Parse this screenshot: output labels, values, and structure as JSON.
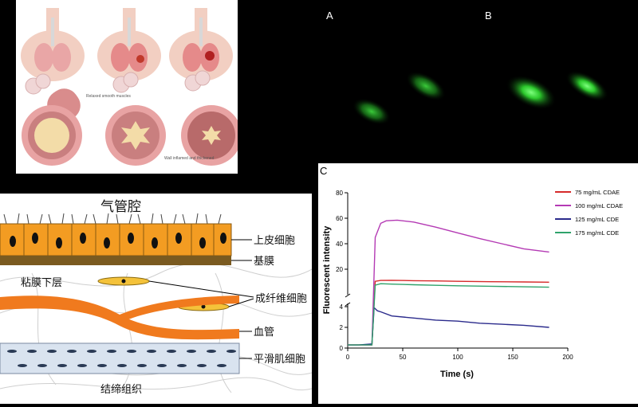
{
  "airway": {
    "label_relaxed": "Relaxed smooth muscles",
    "label_inflamed": "Wall inflamed and thickened"
  },
  "tissue": {
    "lumen": "气管腔",
    "epithelial": "上皮细胞",
    "basement": "基膜",
    "lamina": "粘膜下层",
    "fibroblast": "成纤维细胞",
    "vessel": "血管",
    "smooth_muscle": "平滑肌细胞",
    "connective": "结缔组织"
  },
  "micro": {
    "label_a": "A",
    "label_b": "B"
  },
  "panel_c": {
    "label": "C"
  },
  "colors": {
    "red": "#d62a2a",
    "magenta": "#b43ab4",
    "navy": "#2b2b8c",
    "green": "#2fa36b"
  },
  "chart_data": {
    "type": "line",
    "xlabel": "Time (s)",
    "ylabel": "Fluorescent intensity",
    "xlim": [
      0,
      200
    ],
    "x_ticks": [
      "0",
      "50",
      "100",
      "150",
      "200"
    ],
    "y_upper_ticks": [
      "20",
      "40",
      "60",
      "80"
    ],
    "y_lower_ticks": [
      "0",
      "2",
      "4"
    ],
    "broken_axis": true,
    "legend_position": "top-right",
    "series": [
      {
        "name": "75 mg/mL CDAE",
        "color": "#d62a2a",
        "segment": "upper",
        "x": [
          0,
          22,
          25,
          30,
          40,
          60,
          80,
          100,
          130,
          160,
          183
        ],
        "y": [
          0.3,
          0.3,
          10.5,
          11.2,
          11.3,
          11.0,
          10.8,
          10.5,
          10.2,
          10.0,
          9.8
        ]
      },
      {
        "name": "100 mg/mL CDAE",
        "color": "#b43ab4",
        "segment": "upper",
        "x": [
          0,
          22,
          25,
          30,
          35,
          45,
          60,
          80,
          100,
          120,
          140,
          160,
          183
        ],
        "y": [
          0.3,
          0.3,
          45,
          56,
          58,
          58.5,
          57,
          53,
          48.5,
          44,
          40,
          36,
          33.5
        ]
      },
      {
        "name": "125 mg/mL  CDE",
        "color": "#2b2b8c",
        "segment": "lower",
        "x": [
          0,
          10,
          22,
          24,
          27,
          30,
          40,
          60,
          80,
          100,
          120,
          140,
          160,
          183
        ],
        "y": [
          0.3,
          0.3,
          0.4,
          3.9,
          3.6,
          3.5,
          3.1,
          2.9,
          2.7,
          2.6,
          2.4,
          2.3,
          2.2,
          2.0
        ]
      },
      {
        "name": "175 mg/mL  CDE",
        "color": "#2fa36b",
        "segment": "upper",
        "x": [
          0,
          22,
          25,
          30,
          40,
          60,
          80,
          100,
          130,
          160,
          183
        ],
        "y": [
          0.3,
          0.3,
          7.5,
          8.6,
          8.3,
          7.8,
          7.4,
          7.0,
          6.6,
          6.2,
          5.9
        ]
      }
    ]
  }
}
